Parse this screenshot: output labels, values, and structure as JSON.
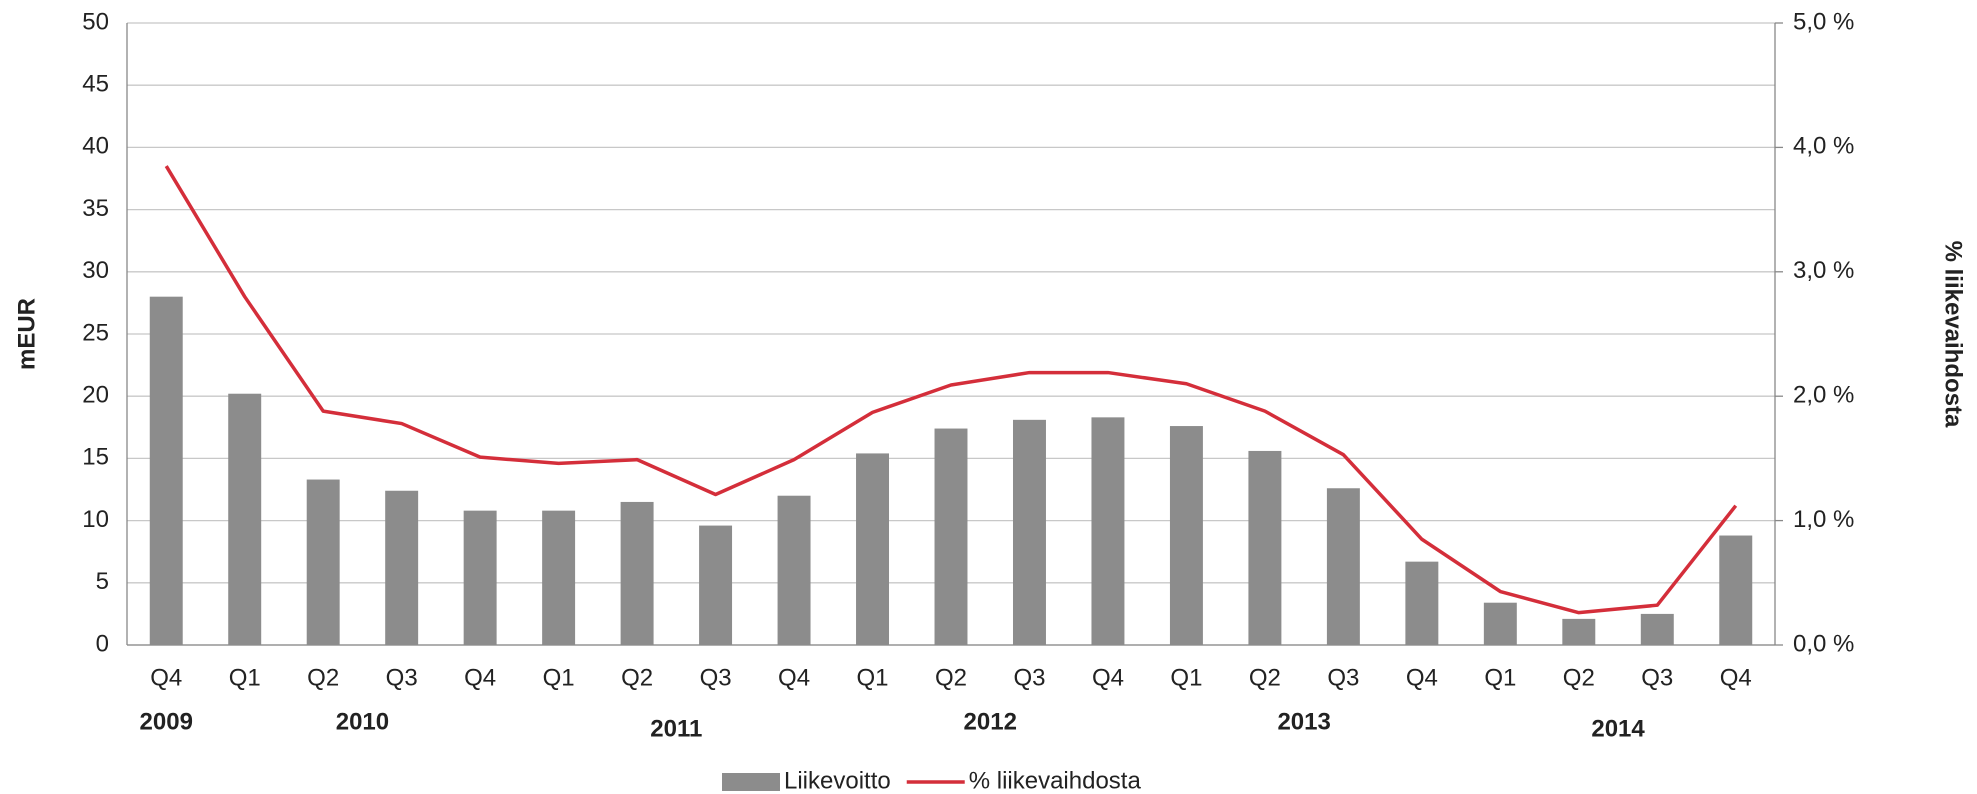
{
  "chart_data": {
    "type": "bar_line",
    "categories": [
      "Q4",
      "Q1",
      "Q2",
      "Q3",
      "Q4",
      "Q1",
      "Q2",
      "Q3",
      "Q4",
      "Q1",
      "Q2",
      "Q3",
      "Q4",
      "Q1",
      "Q2",
      "Q3",
      "Q4",
      "Q1",
      "Q2",
      "Q3",
      "Q4"
    ],
    "year_labels": [
      "2009",
      "2010",
      "2011",
      "2012",
      "2013",
      "2014"
    ],
    "y_label": "mEUR",
    "y2_label": "% liikevaihdosta",
    "series": [
      {
        "name": "Liikevoitto",
        "type": "bar",
        "color": "#8c8c8c",
        "values": [
          28.0,
          20.2,
          13.3,
          12.4,
          10.8,
          10.8,
          11.5,
          9.6,
          12.0,
          15.4,
          17.4,
          18.1,
          18.3,
          17.6,
          15.6,
          12.6,
          6.7,
          3.4,
          2.1,
          2.5,
          8.8
        ]
      },
      {
        "name": "% liikevaihdosta",
        "type": "line",
        "axis": "y2",
        "color": "#d42e3a",
        "values": [
          3.85,
          2.8,
          1.88,
          1.78,
          1.51,
          1.46,
          1.49,
          1.21,
          1.49,
          1.87,
          2.09,
          2.19,
          2.19,
          2.1,
          1.88,
          1.53,
          0.85,
          0.43,
          0.26,
          0.32,
          1.12
        ]
      }
    ],
    "ylim": [
      0,
      50
    ],
    "yticks": [
      0,
      5,
      10,
      15,
      20,
      25,
      30,
      35,
      40,
      45,
      50
    ],
    "y2lim": [
      0,
      5
    ],
    "y2ticks": [
      {
        "value": 0,
        "label": "0,0 %"
      },
      {
        "value": 1,
        "label": "1,0 %"
      },
      {
        "value": 2,
        "label": "2,0 %"
      },
      {
        "value": 3,
        "label": "3,0 %"
      },
      {
        "value": 4,
        "label": "4,0 %"
      },
      {
        "value": 5,
        "label": "5,0 %"
      }
    ],
    "grid": true,
    "legend": "bottom"
  }
}
